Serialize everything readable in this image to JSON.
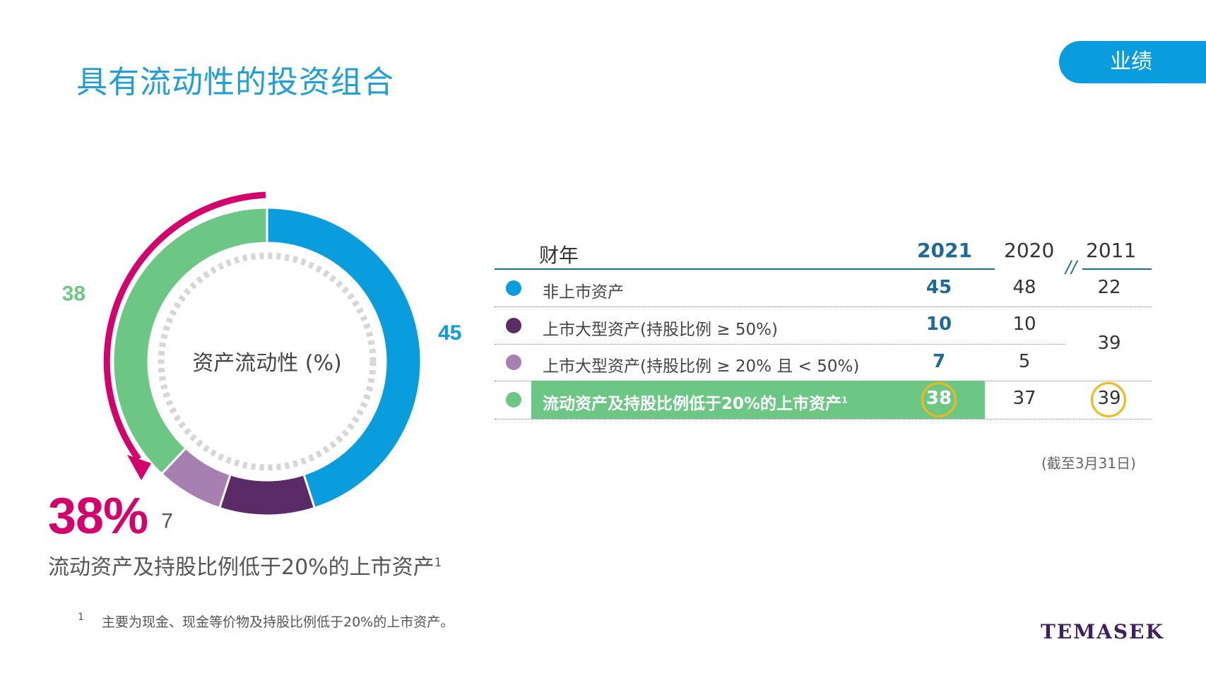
{
  "page": {
    "title": "具有流动性的投资组合",
    "section_tab": "业绩",
    "logo": "TEMASEK"
  },
  "colors": {
    "blue": "#0a9ddd",
    "dark_purple": "#5b2b67",
    "light_purple": "#a680b0",
    "green": "#6dc784",
    "magenta": "#d4006b",
    "navy_text": "#1d6a98",
    "gold_ring": "#f2b817"
  },
  "chart_data": {
    "type": "pie",
    "variant": "donut",
    "title": "资产流动性 (%)",
    "series": [
      {
        "name": "非上市资产",
        "value": 45,
        "color": "#0a9ddd"
      },
      {
        "name": "上市大型资产(持股比例 ≥ 50%)",
        "value": 10,
        "color": "#5b2b67"
      },
      {
        "name": "上市大型资产(持股比例 ≥ 20% 且 < 50%)",
        "value": 7,
        "color": "#a680b0"
      },
      {
        "name": "流动资产及持股比例低于20%的上市资产",
        "value": 38,
        "color": "#6dc784"
      }
    ],
    "callout": {
      "value": "38%",
      "caption": "流动资产及持股比例低于20%的上市资产",
      "caption_sup": "1"
    }
  },
  "table": {
    "header": {
      "label": "财年",
      "y2021": "2021",
      "y2020": "2020",
      "y2011": "2011",
      "break": "//"
    },
    "rows": [
      {
        "label": "非上市资产",
        "y2021": "45",
        "y2020": "48",
        "y2011": "22",
        "color": "#0a9ddd"
      },
      {
        "label": "上市大型资产(持股比例 ≥ 50%)",
        "y2021": "10",
        "y2020": "10",
        "color": "#5b2b67"
      },
      {
        "label": "上市大型资产(持股比例 ≥ 20% 且 < 50%)",
        "y2021": "7",
        "y2020": "5",
        "color": "#a680b0"
      },
      {
        "label": "流动资产及持股比例低于20%的上市资产",
        "label_sup": "1",
        "y2021": "38",
        "y2020": "37",
        "y2011": "39",
        "color": "#6dc784"
      }
    ],
    "merged_2011": "39",
    "as_of": "(截至3月31日)"
  },
  "footnote": {
    "number": "1",
    "text": "主要为现金、现金等价物及持股比例低于20%的上市资产。"
  }
}
